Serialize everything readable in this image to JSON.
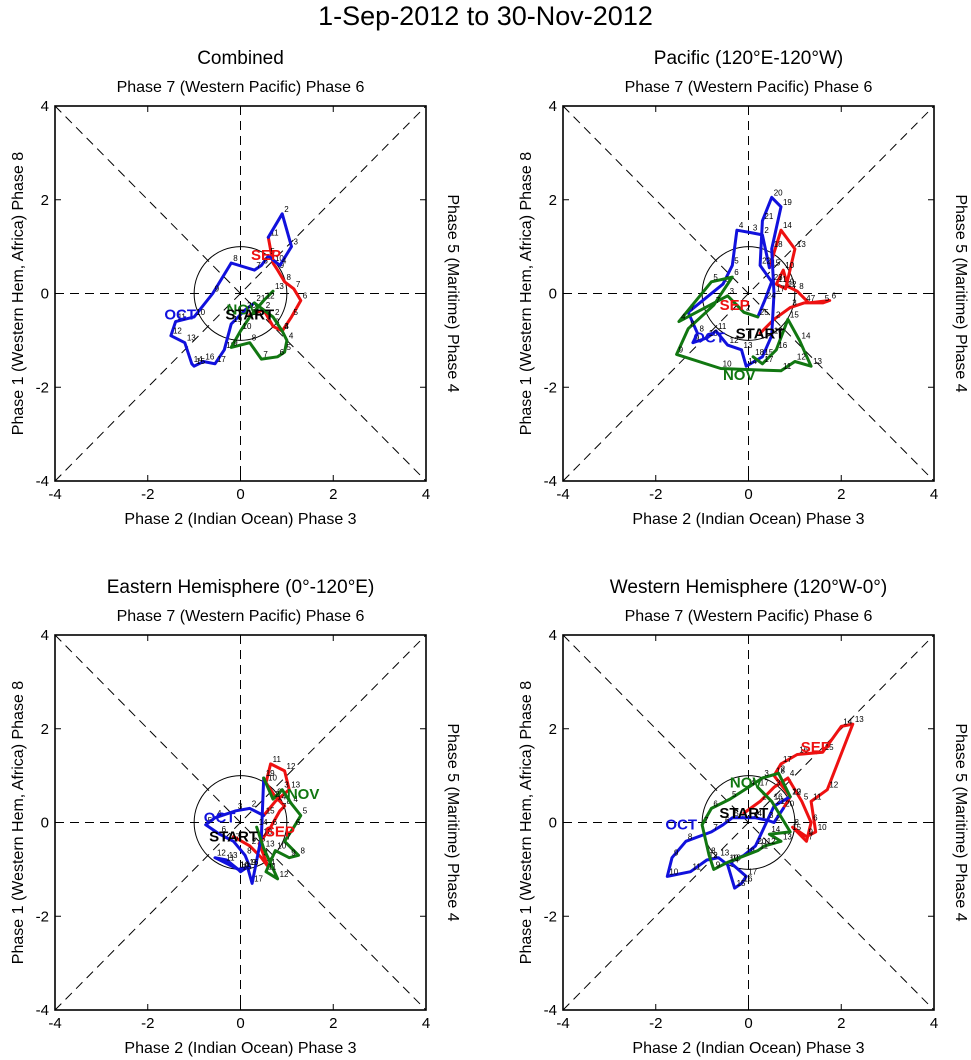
{
  "title": "1-Sep-2012 to 30-Nov-2012",
  "axis_labels": {
    "top": "Phase 7 (Western Pacific) Phase 6",
    "bottom": "Phase 2 (Indian Ocean) Phase 3",
    "left": "Phase 1 (Western Hem, Africa) Phase 8",
    "right": "Phase 5 (Maritime) Phase 4"
  },
  "colors": {
    "sep": "#ee1111",
    "oct": "#1111dd",
    "nov": "#117711",
    "start": "#000000"
  },
  "chart_data": [
    {
      "type": "line",
      "title": "Combined",
      "xlabel": "Phase 2 (Indian Ocean) Phase 3",
      "ylabel": "Phase 1 (Western Hem, Africa) Phase 8",
      "xlim": [
        -4,
        4
      ],
      "ylim": [
        -4,
        4
      ],
      "ticks": [
        -4,
        -2,
        0,
        2,
        4
      ],
      "start_label": "START",
      "start_point": [
        0.2,
        -0.45
      ],
      "series": [
        {
          "name": "SEP",
          "label_at": [
            0.55,
            0.72
          ],
          "x": [
            0.2,
            0.5,
            0.7,
            0.9,
            1.1,
            1.3,
            1.15,
            0.95,
            0.8,
            0.7,
            0.6
          ],
          "y": [
            -0.45,
            -0.35,
            -0.7,
            -0.8,
            -0.5,
            -0.15,
            0.1,
            0.25,
            0.5,
            0.65,
            1.2
          ]
        },
        {
          "name": "OCT",
          "label_at": [
            -1.3,
            -0.55
          ],
          "x": [
            0.6,
            0.9,
            1.1,
            0.85,
            0.6,
            0.45,
            0.3,
            -0.2,
            -0.6,
            -1.0,
            -1.4,
            -1.5,
            -1.2,
            -1.05,
            -1.0,
            -0.8,
            -0.55,
            -0.35,
            -0.2,
            0.1,
            0.3
          ],
          "y": [
            1.2,
            1.7,
            1.0,
            0.6,
            0.8,
            0.6,
            0.5,
            0.65,
            0.0,
            -0.5,
            -0.6,
            -0.9,
            -1.05,
            -1.5,
            -1.55,
            -1.45,
            -1.5,
            -1.2,
            -0.65,
            -0.35,
            -0.2
          ]
        },
        {
          "name": "NOV",
          "label_at": [
            0.05,
            -0.45
          ],
          "x": [
            0.3,
            0.7,
            0.9,
            1.0,
            0.95,
            0.8,
            0.45,
            0.2,
            -0.2,
            0.0,
            0.2,
            0.5,
            0.7
          ],
          "y": [
            -0.2,
            -0.5,
            -0.8,
            -1.0,
            -1.25,
            -1.35,
            -1.4,
            -1.05,
            -1.15,
            -0.8,
            -0.5,
            -0.15,
            0.05
          ]
        }
      ]
    },
    {
      "type": "line",
      "title": "Pacific (120°E-120°W)",
      "xlabel": "Phase 2 (Indian Ocean) Phase 3",
      "ylabel": "Phase 1 (Western Hem, Africa) Phase 8",
      "xlim": [
        -4,
        4
      ],
      "ylim": [
        -4,
        4
      ],
      "ticks": [
        -4,
        -2,
        0,
        2,
        4
      ],
      "start_label": "START",
      "start_point": [
        0.25,
        -0.85
      ],
      "series": [
        {
          "name": "SEP",
          "label_at": [
            -0.3,
            -0.35
          ],
          "x": [
            0.25,
            0.55,
            0.9,
            1.2,
            1.6,
            1.75,
            1.3,
            1.05,
            0.85,
            0.75,
            0.6,
            0.8,
            1.0,
            0.7,
            0.45
          ],
          "y": [
            -0.85,
            -0.55,
            -0.3,
            -0.2,
            -0.2,
            -0.15,
            -0.2,
            0.05,
            0.15,
            0.5,
            0.2,
            0.1,
            0.95,
            1.35,
            0.55
          ]
        },
        {
          "name": "OCT",
          "label_at": [
            -0.85,
            -1.05
          ],
          "x": [
            0.45,
            0.3,
            0.05,
            -0.25,
            -0.35,
            -0.55,
            -1.3,
            -1.1,
            -1.2,
            -0.9,
            -0.7,
            -0.45,
            -0.15,
            -0.05,
            0.3,
            0.5,
            0.55,
            0.5,
            0.7,
            0.5,
            0.3,
            0.25,
            0.5,
            0.35,
            0.2
          ],
          "y": [
            0.55,
            1.25,
            1.3,
            1.35,
            0.6,
            0.2,
            -0.4,
            -0.85,
            -1.05,
            -0.95,
            -0.8,
            -1.1,
            -1.2,
            -1.55,
            -1.35,
            -0.9,
            0.0,
            0.95,
            1.85,
            2.05,
            1.55,
            0.6,
            0.25,
            -0.15,
            -0.5
          ]
        },
        {
          "name": "NOV",
          "label_at": [
            -0.2,
            -1.85
          ],
          "x": [
            0.2,
            -0.1,
            -0.45,
            -1.5,
            -0.8,
            -0.35,
            -0.75,
            -1.3,
            -1.55,
            -0.6,
            0.7,
            1.0,
            1.35,
            1.1,
            0.85,
            0.6,
            0.3,
            0.1
          ],
          "y": [
            -0.5,
            -0.4,
            -0.05,
            -0.6,
            0.25,
            0.35,
            -0.25,
            -0.75,
            -1.3,
            -1.6,
            -1.65,
            -1.45,
            -1.55,
            -1.0,
            -0.55,
            -1.2,
            -1.5,
            -1.35
          ]
        }
      ]
    },
    {
      "type": "line",
      "title": "Eastern Hemisphere (0°-120°E)",
      "xlabel": "Phase 2 (Indian Ocean) Phase 3",
      "ylabel": "Phase 1 (Western Hem, Africa) Phase 8",
      "xlim": [
        -4,
        4
      ],
      "ylim": [
        -4,
        4
      ],
      "ticks": [
        -4,
        -2,
        0,
        2,
        4
      ],
      "start_label": "START",
      "start_point": [
        -0.15,
        -0.3
      ],
      "series": [
        {
          "name": "SEP",
          "label_at": [
            0.85,
            -0.3
          ],
          "x": [
            -0.15,
            0.2,
            0.45,
            0.6,
            0.4,
            0.65,
            0.85,
            0.95,
            0.75,
            0.55,
            0.65,
            0.95,
            1.05,
            0.75,
            0.5
          ],
          "y": [
            -0.3,
            -0.5,
            -0.75,
            -0.95,
            -0.45,
            -0.1,
            0.25,
            0.35,
            0.55,
            0.85,
            1.25,
            1.1,
            0.7,
            0.45,
            0.15
          ]
        },
        {
          "name": "OCT",
          "label_at": [
            -0.45,
            0.0
          ],
          "x": [
            0.5,
            0.2,
            -0.1,
            -0.55,
            -0.75,
            -0.45,
            -0.15,
            0.1,
            0.2,
            -0.05,
            -0.35,
            -0.55,
            -0.3,
            -0.05,
            0.0,
            0.15,
            0.25,
            0.45,
            0.5
          ],
          "y": [
            0.15,
            0.3,
            0.25,
            0.1,
            -0.05,
            -0.25,
            -0.4,
            -0.7,
            -0.95,
            -1.0,
            -0.85,
            -0.75,
            -0.8,
            -1.0,
            -1.05,
            -0.95,
            -1.3,
            -0.3,
            0.95
          ]
        },
        {
          "name": "NOV",
          "label_at": [
            1.35,
            0.5
          ],
          "x": [
            0.5,
            0.7,
            0.9,
            1.1,
            1.3,
            1.15,
            0.95,
            1.25,
            1.05,
            0.75,
            0.55,
            0.8,
            0.5,
            0.35
          ],
          "y": [
            0.95,
            0.5,
            0.7,
            0.4,
            0.15,
            -0.1,
            -0.4,
            -0.7,
            -0.75,
            -0.6,
            -1.05,
            -1.2,
            -0.55,
            -0.1
          ]
        }
      ]
    },
    {
      "type": "line",
      "title": "Western Hemisphere (120°W-0°)",
      "xlabel": "Phase 2 (Indian Ocean) Phase 3",
      "ylabel": "Phase 1 (Western Hem, Africa) Phase 8",
      "xlim": [
        -4,
        4
      ],
      "ylim": [
        -4,
        4
      ],
      "ticks": [
        -4,
        -2,
        0,
        2,
        4
      ],
      "start_label": "START",
      "start_point": [
        -0.1,
        0.2
      ],
      "series": [
        {
          "name": "SEP",
          "label_at": [
            1.45,
            1.5
          ],
          "x": [
            -0.1,
            0.25,
            0.55,
            0.85,
            1.15,
            1.35,
            1.25,
            0.95,
            1.25,
            1.45,
            1.35,
            1.7,
            2.25,
            2.0,
            1.6,
            1.05,
            0.7,
            0.55,
            0.9,
            0.75
          ],
          "y": [
            0.2,
            0.45,
            0.75,
            0.95,
            0.45,
            0.0,
            -0.4,
            -0.1,
            -0.3,
            -0.2,
            0.45,
            0.7,
            2.1,
            2.05,
            1.5,
            1.45,
            1.25,
            1.0,
            0.55,
            0.3
          ]
        },
        {
          "name": "OCT",
          "label_at": [
            -1.45,
            -0.15
          ],
          "x": [
            0.75,
            0.55,
            0.4,
            0.15,
            -0.35,
            -0.55,
            -0.8,
            -1.35,
            -1.65,
            -1.75,
            -1.25,
            -0.9,
            -0.65,
            -0.45,
            -0.3,
            -0.15,
            -0.05,
            -0.4,
            -0.1,
            0.15,
            0.55,
            0.9
          ],
          "y": [
            0.3,
            0.0,
            0.05,
            0.1,
            0.1,
            -0.05,
            -0.2,
            -0.4,
            -0.75,
            -1.15,
            -1.05,
            -0.8,
            -0.75,
            -0.9,
            -1.4,
            -1.3,
            -1.15,
            -0.85,
            -0.7,
            -0.5,
            0.35,
            0.55
          ]
        },
        {
          "name": "NOV",
          "label_at": [
            -0.05,
            0.75
          ],
          "x": [
            0.9,
            0.65,
            0.3,
            0.0,
            -0.4,
            -0.8,
            -1.0,
            -0.85,
            -0.75,
            -0.45,
            0.2,
            0.35,
            0.7,
            0.45,
            0.9,
            0.5,
            0.2
          ],
          "y": [
            0.55,
            1.05,
            0.95,
            0.75,
            0.5,
            0.3,
            -0.05,
            -0.7,
            -1.0,
            -0.85,
            -0.6,
            -0.5,
            -0.4,
            -0.25,
            -0.2,
            0.45,
            0.75
          ]
        }
      ]
    }
  ]
}
